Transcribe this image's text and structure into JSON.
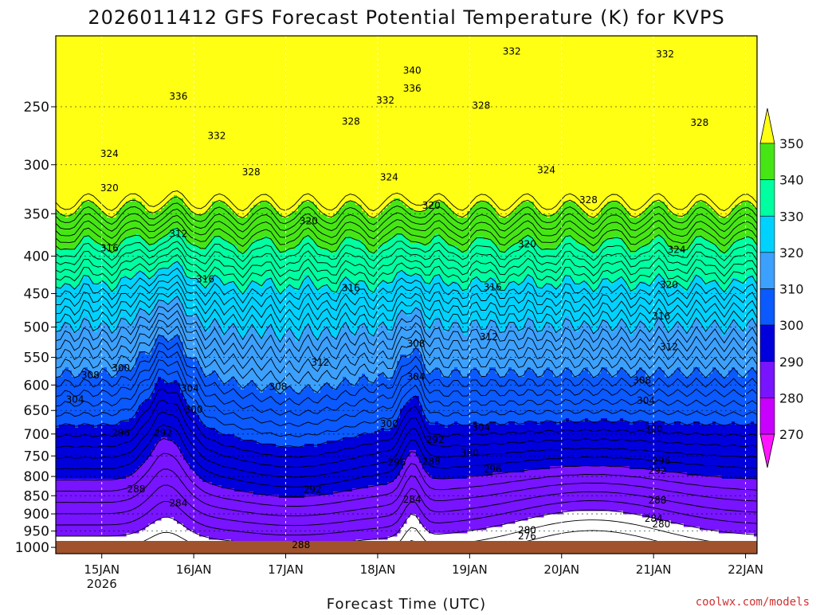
{
  "chart_data": {
    "type": "contour",
    "title": "2026011412 GFS Forecast Potential Temperature (K) for KVPS",
    "xlabel": "Forecast Time (UTC)",
    "ylabel": "",
    "credit": "coolwx.com/models",
    "x_ticks": [
      {
        "label": "15JAN",
        "sub": "2026",
        "hours": 12
      },
      {
        "label": "16JAN",
        "sub": "",
        "hours": 36
      },
      {
        "label": "17JAN",
        "sub": "",
        "hours": 60
      },
      {
        "label": "18JAN",
        "sub": "",
        "hours": 84
      },
      {
        "label": "19JAN",
        "sub": "",
        "hours": 108
      },
      {
        "label": "20JAN",
        "sub": "",
        "hours": 132
      },
      {
        "label": "21JAN",
        "sub": "",
        "hours": 156
      },
      {
        "label": "22JAN",
        "sub": "",
        "hours": 180
      }
    ],
    "xlim_hours": [
      0,
      183
    ],
    "y_ticks": [
      250,
      300,
      350,
      400,
      450,
      500,
      550,
      600,
      650,
      700,
      750,
      800,
      850,
      900,
      950,
      1000
    ],
    "ylim_hPa": [
      1020,
      200
    ],
    "y_scale": "log",
    "colorbar": {
      "levels": [
        270,
        280,
        290,
        300,
        310,
        320,
        330,
        340,
        350
      ],
      "colors": [
        "#ff14ff",
        "#c800ff",
        "#7814ff",
        "#0000dc",
        "#0a5aff",
        "#3ca0ff",
        "#00d2ff",
        "#00ffa0",
        "#46e614",
        "#ffff14",
        "#ffa500"
      ],
      "extend": "both"
    },
    "ground_color": "#a0522d",
    "contour_labels": [
      {
        "text": "336",
        "t": 32,
        "p": 242
      },
      {
        "text": "340",
        "t": 93,
        "p": 223
      },
      {
        "text": "336",
        "t": 93,
        "p": 236
      },
      {
        "text": "332",
        "t": 86,
        "p": 245
      },
      {
        "text": "332",
        "t": 119,
        "p": 210
      },
      {
        "text": "332",
        "t": 159,
        "p": 212
      },
      {
        "text": "332",
        "t": 42,
        "p": 274
      },
      {
        "text": "328",
        "t": 77,
        "p": 262
      },
      {
        "text": "328",
        "t": 111,
        "p": 249
      },
      {
        "text": "328",
        "t": 168,
        "p": 263
      },
      {
        "text": "328",
        "t": 51,
        "p": 307
      },
      {
        "text": "328",
        "t": 139,
        "p": 335
      },
      {
        "text": "324",
        "t": 14,
        "p": 290
      },
      {
        "text": "324",
        "t": 87,
        "p": 312
      },
      {
        "text": "324",
        "t": 128,
        "p": 305
      },
      {
        "text": "324",
        "t": 162,
        "p": 392
      },
      {
        "text": "320",
        "t": 14,
        "p": 323
      },
      {
        "text": "320",
        "t": 98,
        "p": 341
      },
      {
        "text": "320",
        "t": 66,
        "p": 358
      },
      {
        "text": "320",
        "t": 123,
        "p": 385
      },
      {
        "text": "320",
        "t": 160,
        "p": 438
      },
      {
        "text": "316",
        "t": 14,
        "p": 390
      },
      {
        "text": "316",
        "t": 39,
        "p": 430
      },
      {
        "text": "316",
        "t": 77,
        "p": 442
      },
      {
        "text": "316",
        "t": 114,
        "p": 441
      },
      {
        "text": "316",
        "t": 158,
        "p": 483
      },
      {
        "text": "312",
        "t": 32,
        "p": 373
      },
      {
        "text": "312",
        "t": 69,
        "p": 559
      },
      {
        "text": "312",
        "t": 113,
        "p": 516
      },
      {
        "text": "312",
        "t": 160,
        "p": 532
      },
      {
        "text": "308",
        "t": 9,
        "p": 582
      },
      {
        "text": "308",
        "t": 58,
        "p": 603
      },
      {
        "text": "308",
        "t": 94,
        "p": 527
      },
      {
        "text": "308",
        "t": 153,
        "p": 591
      },
      {
        "text": "304",
        "t": 5,
        "p": 628
      },
      {
        "text": "304",
        "t": 35,
        "p": 606
      },
      {
        "text": "304",
        "t": 94,
        "p": 585
      },
      {
        "text": "304",
        "t": 154,
        "p": 630
      },
      {
        "text": "304",
        "t": 111,
        "p": 686
      },
      {
        "text": "300",
        "t": 17,
        "p": 569
      },
      {
        "text": "300",
        "t": 36,
        "p": 648
      },
      {
        "text": "300",
        "t": 87,
        "p": 678
      },
      {
        "text": "300",
        "t": 108,
        "p": 743
      },
      {
        "text": "300",
        "t": 156,
        "p": 689
      },
      {
        "text": "296",
        "t": 17,
        "p": 698
      },
      {
        "text": "296",
        "t": 89,
        "p": 766
      },
      {
        "text": "296",
        "t": 114,
        "p": 782
      },
      {
        "text": "296",
        "t": 158,
        "p": 762
      },
      {
        "text": "292",
        "t": 28,
        "p": 698
      },
      {
        "text": "292",
        "t": 67,
        "p": 834
      },
      {
        "text": "292",
        "t": 99,
        "p": 713
      },
      {
        "text": "292",
        "t": 157,
        "p": 786
      },
      {
        "text": "288",
        "t": 21,
        "p": 833
      },
      {
        "text": "288",
        "t": 98,
        "p": 763
      },
      {
        "text": "288",
        "t": 157,
        "p": 862
      },
      {
        "text": "288",
        "t": 64,
        "p": 992
      },
      {
        "text": "284",
        "t": 32,
        "p": 870
      },
      {
        "text": "284",
        "t": 93,
        "p": 860
      },
      {
        "text": "284",
        "t": 156,
        "p": 913
      },
      {
        "text": "280",
        "t": 123,
        "p": 947
      },
      {
        "text": "280",
        "t": 158,
        "p": 930
      },
      {
        "text": "276",
        "t": 123,
        "p": 965
      }
    ]
  }
}
